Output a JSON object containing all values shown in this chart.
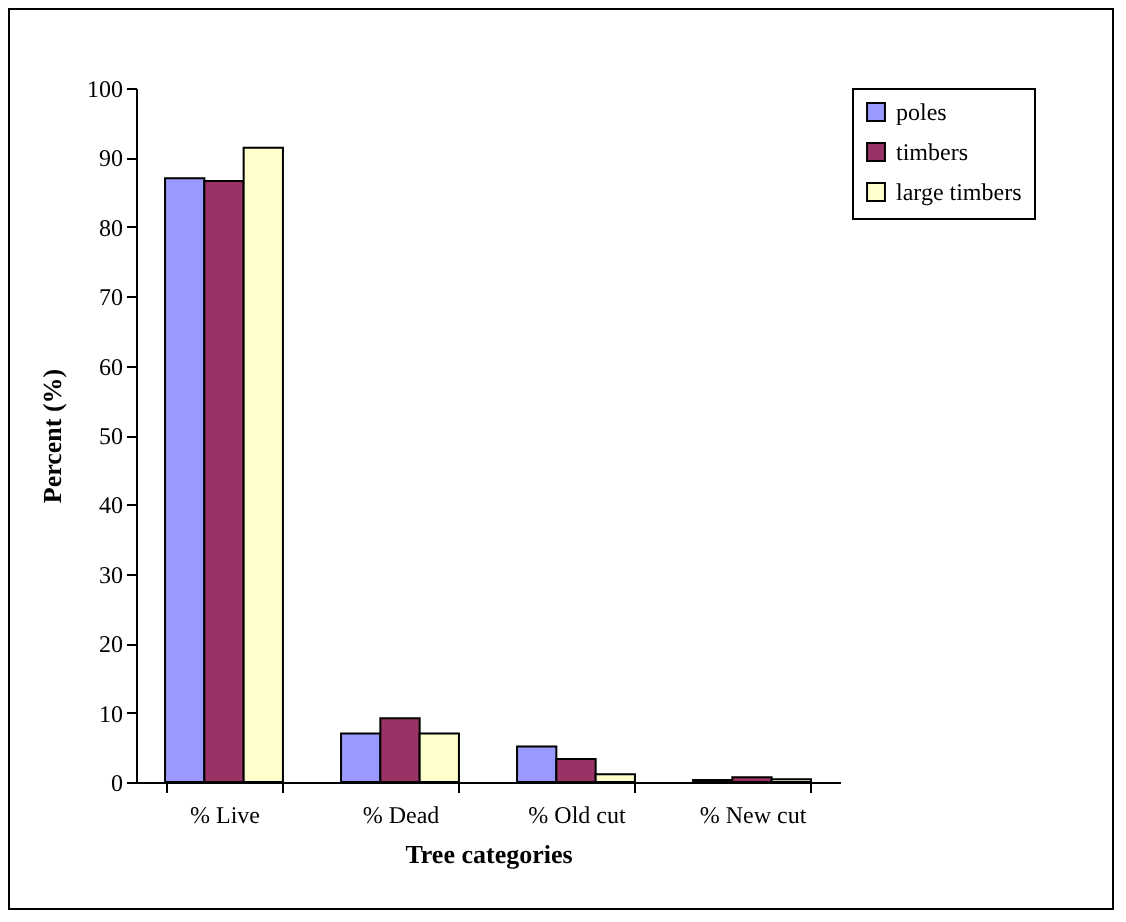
{
  "chart_data": {
    "type": "bar",
    "xlabel": "Tree categories",
    "ylabel": "Percent (%)",
    "categories": [
      "% Live",
      "% Dead",
      "% Old cut",
      "% New cut"
    ],
    "series": [
      {
        "name": "poles",
        "color": "#9999ff",
        "values": [
          87,
          7,
          5.1,
          0.3
        ]
      },
      {
        "name": "timbers",
        "color": "#993366",
        "values": [
          86.6,
          9.2,
          3.3,
          0.7
        ]
      },
      {
        "name": "large timbers",
        "color": "#ffffcc",
        "values": [
          91.4,
          7,
          1.1,
          0.4
        ]
      }
    ],
    "ylim": [
      0,
      100
    ],
    "yticks": [
      0,
      10,
      20,
      30,
      40,
      50,
      60,
      70,
      80,
      90,
      100
    ],
    "grid": false,
    "legend": "right"
  }
}
